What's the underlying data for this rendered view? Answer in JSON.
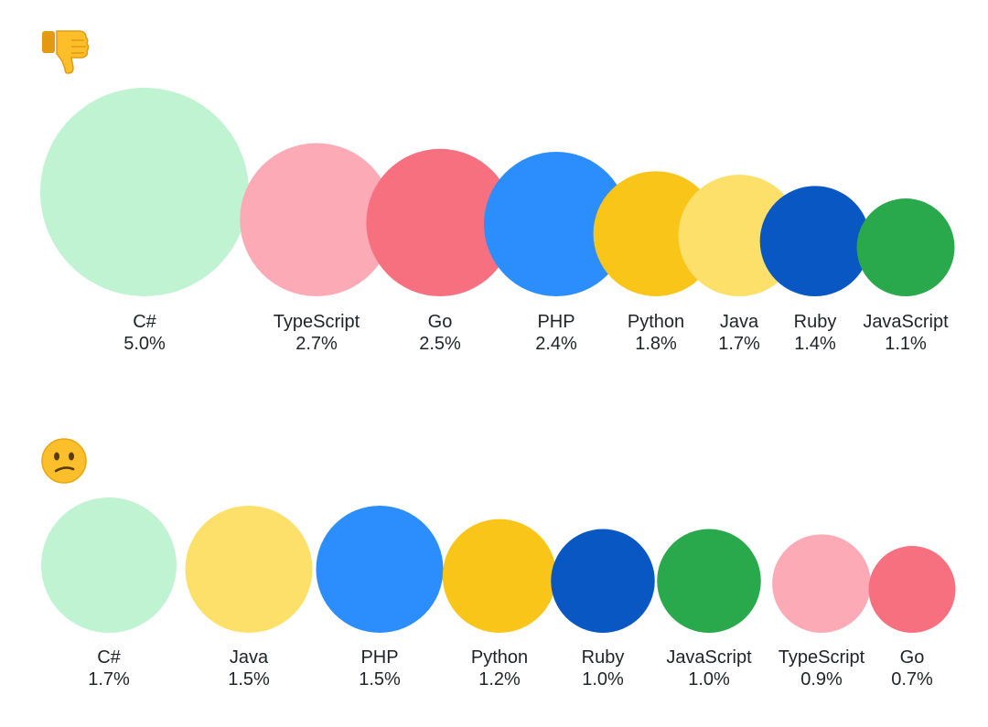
{
  "chart_data": [
    {
      "type": "bubble",
      "icon": "thumbs-down-icon",
      "unit": "%",
      "series": [
        {
          "name": "C#",
          "value": 5.0,
          "label": "5.0%",
          "color": "#bff3d2"
        },
        {
          "name": "TypeScript",
          "value": 2.7,
          "label": "2.7%",
          "color": "#fbaab6"
        },
        {
          "name": "Go",
          "value": 2.5,
          "label": "2.5%",
          "color": "#f7707f"
        },
        {
          "name": "PHP",
          "value": 2.4,
          "label": "2.4%",
          "color": "#2b8efc"
        },
        {
          "name": "Python",
          "value": 1.8,
          "label": "1.8%",
          "color": "#fac519"
        },
        {
          "name": "Java",
          "value": 1.7,
          "label": "1.7%",
          "color": "#fde06a"
        },
        {
          "name": "Ruby",
          "value": 1.4,
          "label": "1.4%",
          "color": "#0857c3"
        },
        {
          "name": "JavaScript",
          "value": 1.1,
          "label": "1.1%",
          "color": "#2aa84c"
        }
      ]
    },
    {
      "type": "bubble",
      "icon": "confused-face-icon",
      "unit": "%",
      "series": [
        {
          "name": "C#",
          "value": 1.7,
          "label": "1.7%",
          "color": "#bff3d2"
        },
        {
          "name": "Java",
          "value": 1.5,
          "label": "1.5%",
          "color": "#fde06a"
        },
        {
          "name": "PHP",
          "value": 1.5,
          "label": "1.5%",
          "color": "#2b8efc"
        },
        {
          "name": "Python",
          "value": 1.2,
          "label": "1.2%",
          "color": "#fac519"
        },
        {
          "name": "Ruby",
          "value": 1.0,
          "label": "1.0%",
          "color": "#0857c3"
        },
        {
          "name": "JavaScript",
          "value": 1.0,
          "label": "1.0%",
          "color": "#2aa84c"
        },
        {
          "name": "TypeScript",
          "value": 0.9,
          "label": "0.9%",
          "color": "#fbaab6"
        },
        {
          "name": "Go",
          "value": 0.7,
          "label": "0.7%",
          "color": "#f7707f"
        }
      ]
    }
  ]
}
